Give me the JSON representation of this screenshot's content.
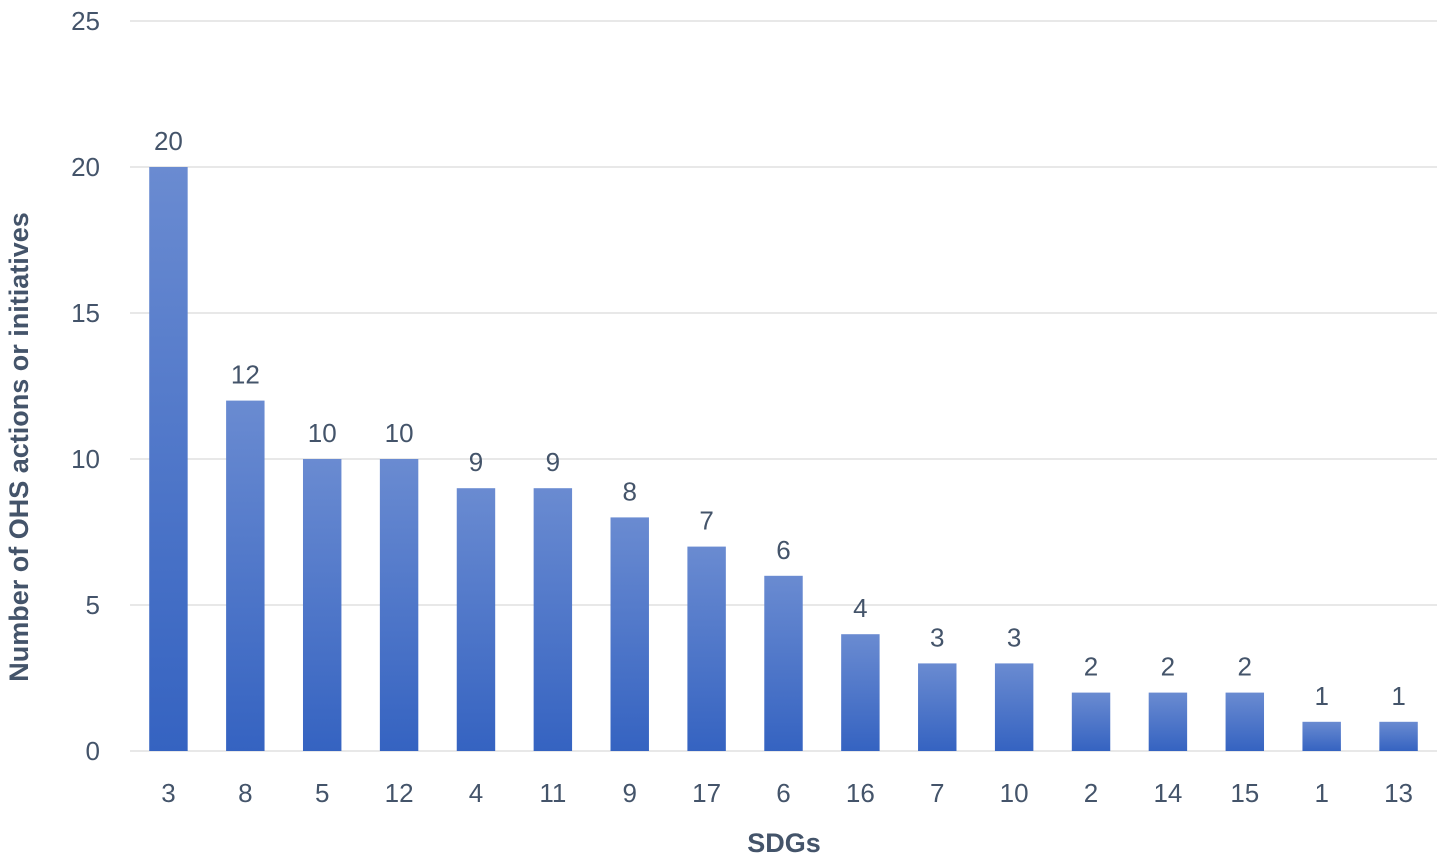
{
  "chart_data": {
    "type": "bar",
    "categories": [
      "3",
      "8",
      "5",
      "12",
      "4",
      "11",
      "9",
      "17",
      "6",
      "16",
      "7",
      "10",
      "2",
      "14",
      "15",
      "1",
      "13"
    ],
    "values": [
      20,
      12,
      10,
      10,
      9,
      9,
      8,
      7,
      6,
      4,
      3,
      3,
      2,
      2,
      2,
      1,
      1
    ],
    "title": "",
    "xlabel": "SDGs",
    "ylabel": "Number of OHS  actions or initiatives",
    "ylim": [
      0,
      25
    ],
    "yticks": [
      0,
      5,
      10,
      15,
      20,
      25
    ],
    "grid": true,
    "legend": "none",
    "data_labels": true,
    "bar_color_top": "#6a8bd1",
    "bar_color_bottom": "#3563c1",
    "text_color": "#44546a",
    "grid_color": "#d9d9d9"
  }
}
